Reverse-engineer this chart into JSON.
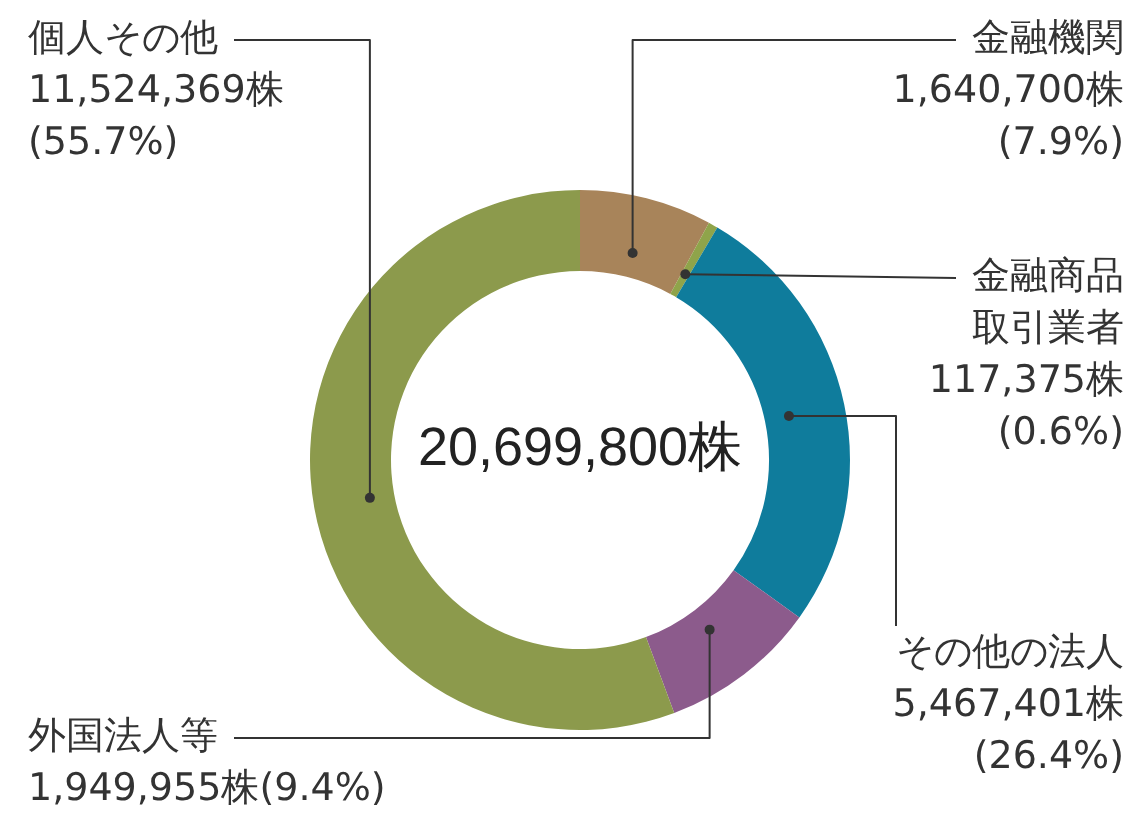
{
  "chart_data": {
    "type": "donut",
    "categories": [
      "金融機関",
      "金融商品取引業者",
      "その他の法人",
      "外国法人等",
      "個人その他"
    ],
    "values": [
      1640700,
      117375,
      5467401,
      1949955,
      11524369
    ],
    "value_labels": [
      "1,640,700株(7.9%)",
      "117,375株(0.6%)",
      "5,467,401株(26.4%)",
      "1,949,955株(9.4%)",
      "11,524,369株(55.7%)"
    ],
    "colors": [
      "#a8845a",
      "#8fa44a",
      "#0f7c9c",
      "#8c5b8c",
      "#8c9a4c"
    ],
    "annotations": [
      "20,699,800株"
    ],
    "legend": false
  }
}
